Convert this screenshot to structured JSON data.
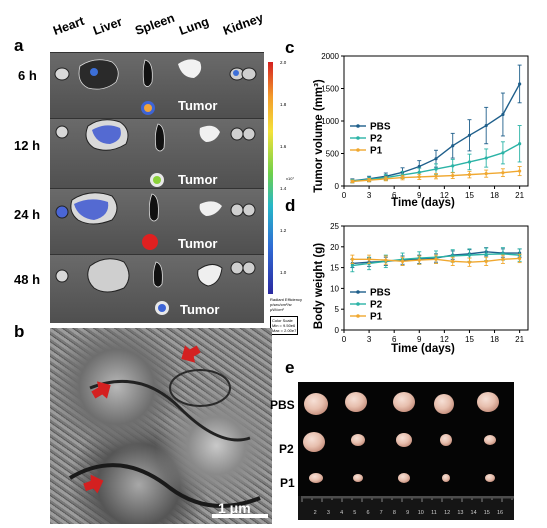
{
  "panels": {
    "a": "a",
    "b": "b",
    "c": "c",
    "d": "d",
    "e": "e"
  },
  "panel_a": {
    "organs": [
      "Heart",
      "Liver",
      "Spleen",
      "Lung",
      "Kidney"
    ],
    "times": [
      "6 h",
      "12 h",
      "24 h",
      "48 h"
    ],
    "tumor_label": "Tumor",
    "colorbar": {
      "ticks": [
        "2.0",
        "1.8",
        "1.6",
        "1.4",
        "1.2",
        "1.0"
      ],
      "unit": "x10⁷",
      "caption_lines": [
        "Radiant Efficiency",
        "p/sec/cm²/sr",
        "μW/cm²"
      ],
      "scale_lines": [
        "Color Scale",
        "Min = 9.50e6",
        "Max = 2.00e7"
      ]
    }
  },
  "panel_b": {
    "scale_bar": "1 μm"
  },
  "panel_e": {
    "groups": [
      "PBS",
      "P2",
      "P1"
    ],
    "ruler_numbers": [
      "2",
      "3",
      "4",
      "5",
      "6",
      "7",
      "8",
      "9",
      "10",
      "11",
      "12",
      "13",
      "14",
      "15",
      "16"
    ]
  },
  "chart_data": [
    {
      "type": "line",
      "id": "c",
      "xlabel": "Time (days)",
      "ylabel": "Tumor volume (mm³)",
      "xlim": [
        0,
        22
      ],
      "ylim": [
        0,
        2000
      ],
      "xticks": [
        0,
        3,
        6,
        9,
        12,
        15,
        18,
        21
      ],
      "yticks": [
        0,
        500,
        1000,
        1500,
        2000
      ],
      "x": [
        1,
        3,
        5,
        7,
        9,
        11,
        13,
        15,
        17,
        19,
        21
      ],
      "legend_position": "top-left",
      "series": [
        {
          "name": "PBS",
          "color": "#1f5f8b",
          "values": [
            80,
            110,
            150,
            210,
            300,
            420,
            620,
            780,
            930,
            1100,
            1570
          ],
          "errors": [
            30,
            40,
            50,
            70,
            90,
            130,
            190,
            240,
            280,
            330,
            290
          ]
        },
        {
          "name": "P2",
          "color": "#2bb3a6",
          "values": [
            75,
            100,
            130,
            170,
            210,
            260,
            310,
            370,
            430,
            510,
            650
          ],
          "errors": [
            25,
            35,
            45,
            55,
            65,
            80,
            100,
            120,
            140,
            170,
            280
          ]
        },
        {
          "name": "P1",
          "color": "#f0a830",
          "values": [
            70,
            90,
            110,
            130,
            140,
            150,
            160,
            175,
            190,
            205,
            230
          ],
          "errors": [
            20,
            25,
            30,
            35,
            40,
            40,
            45,
            50,
            55,
            60,
            70
          ]
        }
      ]
    },
    {
      "type": "line",
      "id": "d",
      "xlabel": "Time (days)",
      "ylabel": "Body weight (g)",
      "xlim": [
        0,
        22
      ],
      "ylim": [
        0,
        25
      ],
      "xticks": [
        0,
        3,
        6,
        9,
        12,
        15,
        18,
        21
      ],
      "yticks": [
        0,
        5,
        10,
        15,
        20,
        25
      ],
      "x": [
        1,
        3,
        5,
        7,
        9,
        11,
        13,
        15,
        17,
        19,
        21
      ],
      "legend_position": "bottom-left",
      "series": [
        {
          "name": "PBS",
          "color": "#1f5f8b",
          "values": [
            16,
            16.3,
            16.5,
            16.8,
            17,
            17.3,
            18,
            18.3,
            18.8,
            18.5,
            18.5
          ],
          "errors": [
            1,
            1,
            1,
            1,
            1,
            1,
            1,
            1,
            1,
            1,
            1
          ]
        },
        {
          "name": "P2",
          "color": "#2bb3a6",
          "values": [
            15.5,
            16,
            16.5,
            17,
            17.3,
            17.5,
            17.8,
            18,
            18.2,
            18.3,
            18
          ],
          "errors": [
            1.5,
            1.5,
            1.5,
            1.5,
            1.5,
            1.5,
            1.5,
            1.5,
            1.5,
            1.5,
            1.5
          ]
        },
        {
          "name": "P1",
          "color": "#f0a830",
          "values": [
            17,
            17,
            16.8,
            16.5,
            16.8,
            17,
            16.5,
            16.3,
            16.5,
            17,
            17.2
          ],
          "errors": [
            1,
            1,
            1,
            1,
            1,
            1,
            1,
            1,
            1,
            1,
            1
          ]
        }
      ]
    }
  ]
}
